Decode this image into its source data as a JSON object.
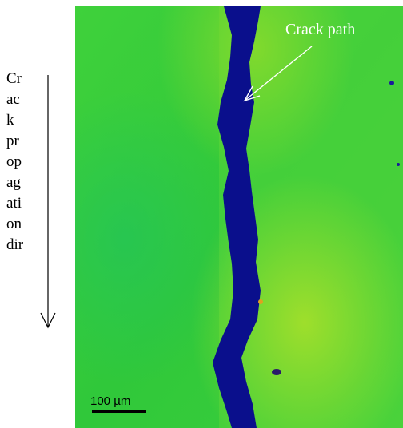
{
  "figure": {
    "axis_caption_fragments": [
      "Cr",
      "ac",
      "k",
      "pr",
      "op",
      "ag",
      "ati",
      "on",
      "dir"
    ],
    "annotation_label": "Crack path",
    "scale_bar_label": "100 µm",
    "colors": {
      "matrix_green": "#33cc33",
      "matrix_yellow_green": "#99dd22",
      "crack_blue": "#0a0f8c",
      "annotation_white": "#ffffff"
    }
  }
}
